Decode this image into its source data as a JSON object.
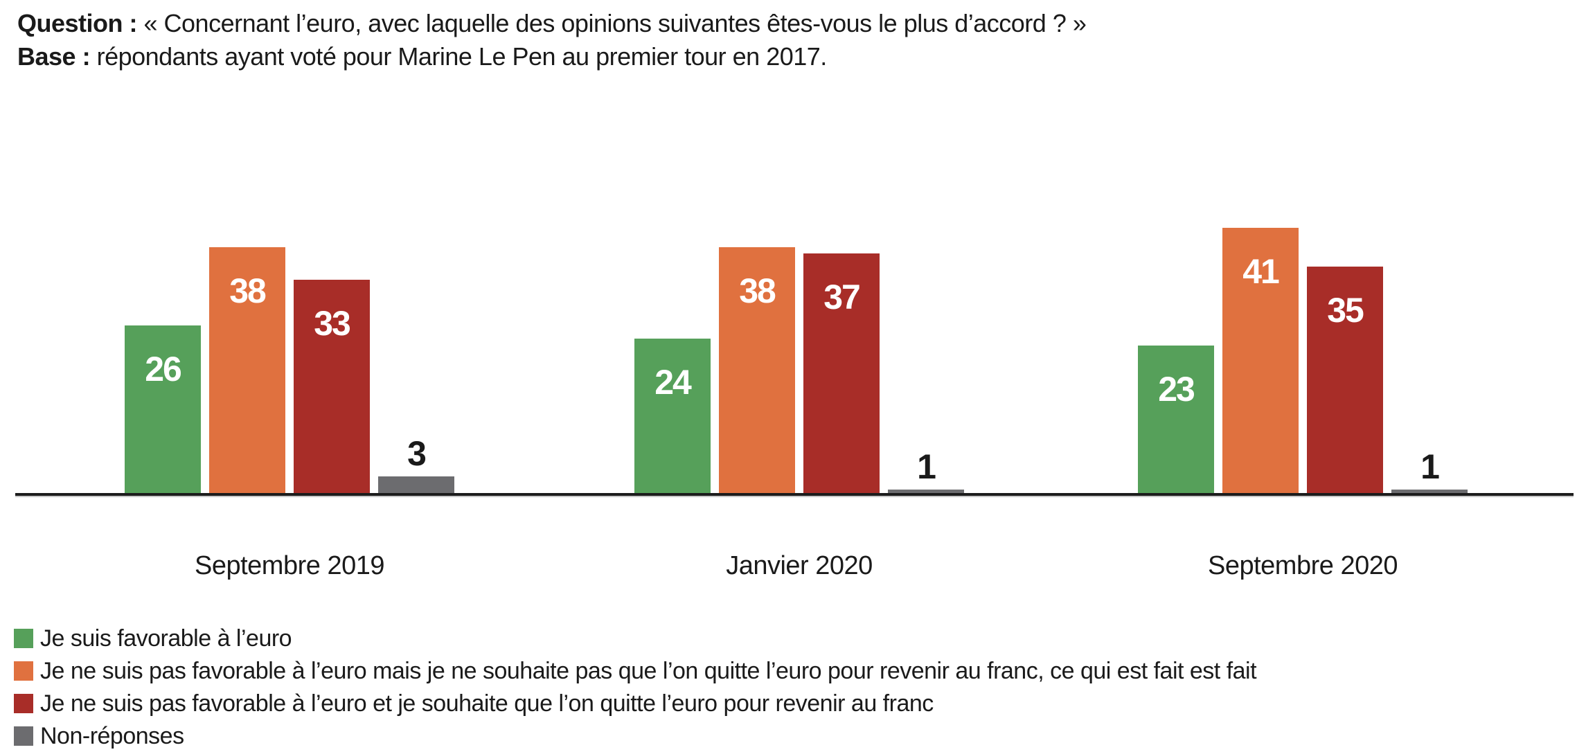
{
  "header": {
    "question_label": "Question :",
    "question_text": "« Concernant l’euro, avec laquelle des opinions suivantes êtes-vous le plus d’accord ? »",
    "base_label": "Base :",
    "base_text": "répondants ayant voté pour Marine Le Pen au premier tour en 2017."
  },
  "chart_data": {
    "type": "bar",
    "categories": [
      "Septembre 2019",
      "Janvier 2020",
      "Septembre 2020"
    ],
    "series": [
      {
        "name": "Je suis favorable à l’euro",
        "color": "#56a05a",
        "values": [
          26,
          24,
          23
        ]
      },
      {
        "name": "Je ne suis pas favorable à l’euro mais je ne souhaite pas que l’on quitte l’euro pour revenir au franc, ce qui est fait est fait",
        "color": "#e0713f",
        "values": [
          38,
          38,
          41
        ]
      },
      {
        "name": "Je ne suis pas favorable à l’euro et je souhaite que l’on quitte l’euro pour revenir au franc",
        "color": "#a82d28",
        "values": [
          33,
          37,
          35
        ]
      },
      {
        "name": "Non-réponses",
        "color": "#6c6c6f",
        "values": [
          3,
          1,
          1
        ]
      }
    ],
    "ylim": [
      0,
      45
    ],
    "grid": false,
    "legend_position": "bottom-left",
    "value_labels": {
      "inside_color": "#ffffff",
      "outside_color": "#1a1a1a"
    },
    "axis_color": "#1c1c1c",
    "text_color": "#1a1a1a"
  }
}
